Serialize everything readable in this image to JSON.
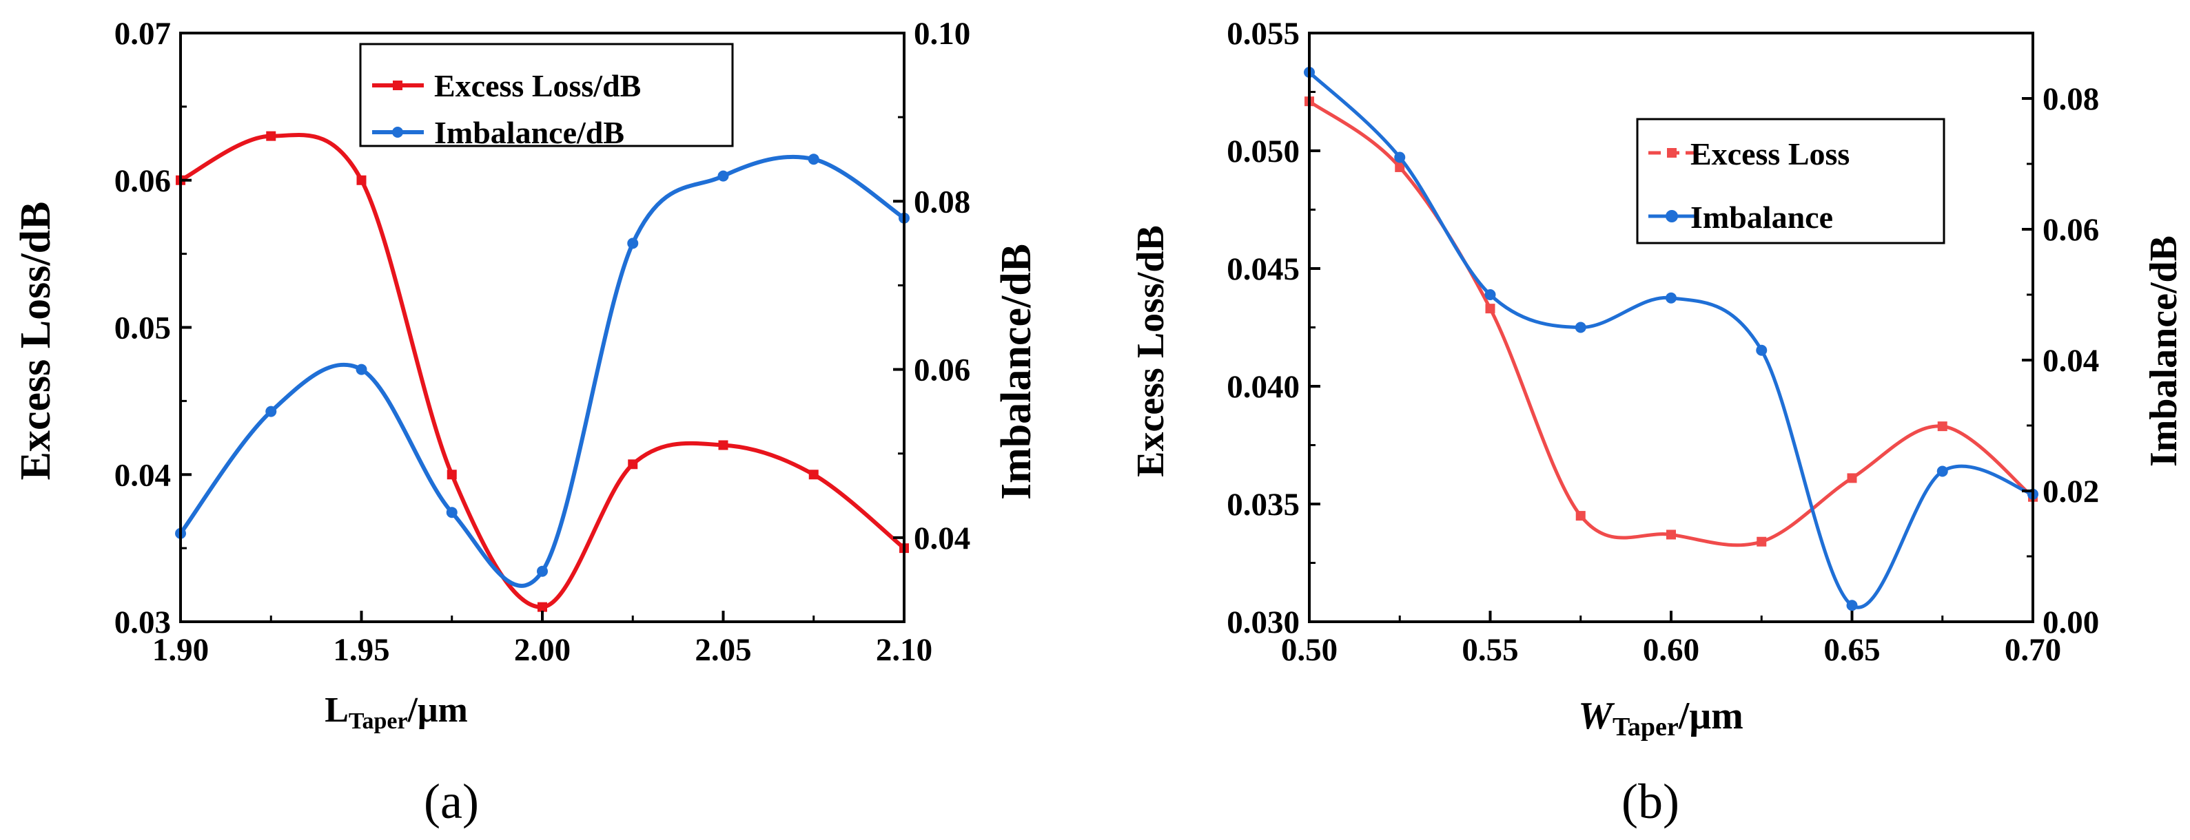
{
  "chart_data": [
    {
      "type": "line",
      "caption": "(a)",
      "xlabel": "L",
      "xlabel_sub": "Taper",
      "xlabel_unit": "/μm",
      "ylabel_left": "Excess Loss/dB",
      "ylabel_right": "Imbalance/dB",
      "xlim": [
        1.9,
        2.1
      ],
      "ylim_left": [
        0.03,
        0.07
      ],
      "ylim_right": [
        0.03,
        0.1
      ],
      "xticks": [
        "1.90",
        "1.95",
        "2.00",
        "2.05",
        "2.10"
      ],
      "yticks_left": [
        "0.03",
        "0.04",
        "0.05",
        "0.06",
        "0.07"
      ],
      "yticks_right": [
        "0.04",
        "0.06",
        "0.08",
        "0.10"
      ],
      "series": [
        {
          "name": "Excess Loss/dB",
          "axis": "left",
          "color": "#e8141c",
          "marker": "square",
          "x": [
            1.9,
            1.925,
            1.95,
            1.975,
            2.0,
            2.025,
            2.05,
            2.075,
            2.1
          ],
          "values": [
            0.06,
            0.063,
            0.06,
            0.04,
            0.031,
            0.0407,
            0.042,
            0.04,
            0.035
          ]
        },
        {
          "name": "Imbalance/dB",
          "axis": "right",
          "color": "#1f6fd6",
          "marker": "circle",
          "x": [
            1.9,
            1.925,
            1.95,
            1.975,
            2.0,
            2.025,
            2.05,
            2.075,
            2.1
          ],
          "values": [
            0.0405,
            0.055,
            0.06,
            0.043,
            0.036,
            0.075,
            0.083,
            0.085,
            0.078
          ]
        }
      ]
    },
    {
      "type": "line",
      "caption": "(b)",
      "xlabel": "W",
      "xlabel_sub": "Taper",
      "xlabel_unit": "/μm",
      "ylabel_left": "Excess Loss/dB",
      "ylabel_right": "Imbalance/dB",
      "xlim": [
        0.5,
        0.7
      ],
      "ylim_left": [
        0.03,
        0.055
      ],
      "ylim_right": [
        0.0,
        0.09
      ],
      "xticks": [
        "0.50",
        "0.55",
        "0.60",
        "0.65",
        "0.70"
      ],
      "yticks_left": [
        "0.030",
        "0.035",
        "0.040",
        "0.045",
        "0.050",
        "0.055"
      ],
      "yticks_right": [
        "0.00",
        "0.02",
        "0.04",
        "0.06",
        "0.08"
      ],
      "series": [
        {
          "name": "Excess Loss",
          "axis": "left",
          "color": "#f04b4b",
          "marker": "square",
          "x": [
            0.5,
            0.525,
            0.55,
            0.575,
            0.6,
            0.625,
            0.65,
            0.675,
            0.7
          ],
          "values": [
            0.0521,
            0.0493,
            0.0433,
            0.0345,
            0.0337,
            0.0334,
            0.0361,
            0.0383,
            0.0353
          ]
        },
        {
          "name": "Imbalance",
          "axis": "right",
          "color": "#1f6fd6",
          "marker": "circle",
          "x": [
            0.5,
            0.525,
            0.55,
            0.575,
            0.6,
            0.625,
            0.65,
            0.675,
            0.7
          ],
          "values": [
            0.084,
            0.071,
            0.05,
            0.045,
            0.0495,
            0.0415,
            0.0025,
            0.023,
            0.0195
          ]
        }
      ]
    }
  ]
}
